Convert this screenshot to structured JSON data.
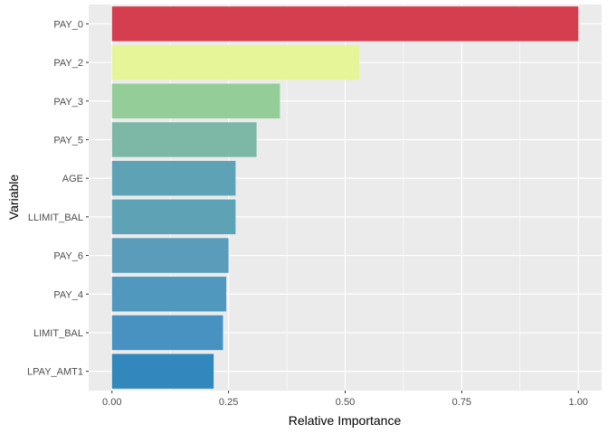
{
  "chart_data": {
    "type": "bar",
    "orientation": "horizontal",
    "xlabel": "Relative Importance",
    "ylabel": "Variable",
    "xlim": [
      -0.05,
      1.05
    ],
    "x_ticks": [
      0.0,
      0.25,
      0.5,
      0.75,
      1.0
    ],
    "x_tick_labels": [
      "0.00",
      "0.25",
      "0.50",
      "0.75",
      "1.00"
    ],
    "grid": true,
    "legend": "none",
    "categories": [
      "PAY_0",
      "PAY_2",
      "PAY_3",
      "PAY_5",
      "AGE",
      "LLIMIT_BAL",
      "PAY_6",
      "PAY_4",
      "LIMIT_BAL",
      "LPAY_AMT1"
    ],
    "values": [
      1.0,
      0.53,
      0.36,
      0.31,
      0.265,
      0.265,
      0.25,
      0.245,
      0.238,
      0.218
    ],
    "colors": [
      "#D53E4F",
      "#E6F598",
      "#94CD98",
      "#7DB8A6",
      "#5EA2B5",
      "#5EA2B5",
      "#5A9CBA",
      "#5098BD",
      "#4792C0",
      "#3288BD"
    ]
  }
}
